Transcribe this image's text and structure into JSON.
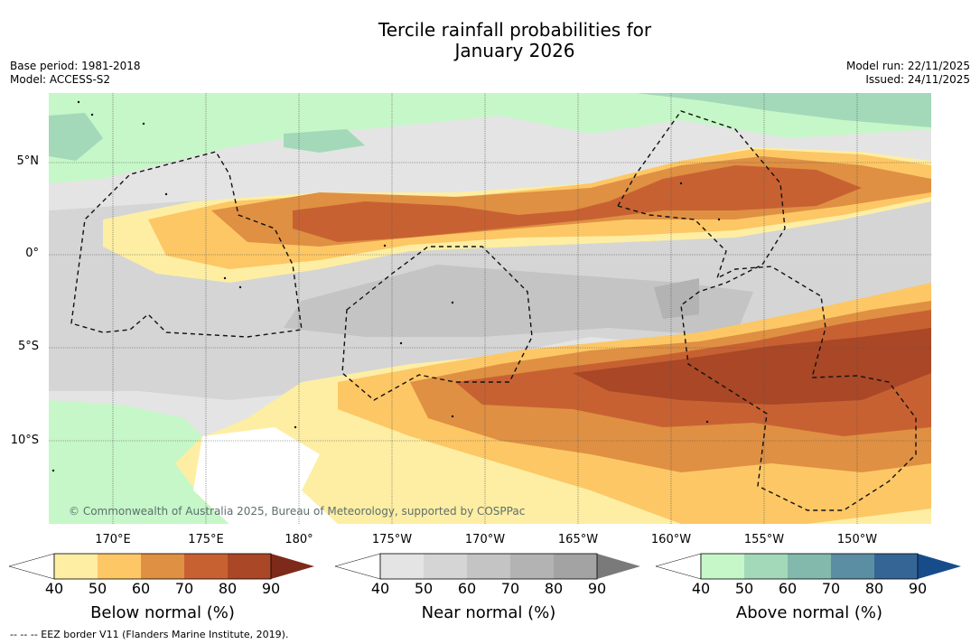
{
  "title_line1": "Tercile rainfall probabilities for",
  "title_line2": "January 2026",
  "base_period": "Base period: 1981-2018",
  "model": "Model: ACCESS-S2",
  "model_run": "Model run: 22/11/2025",
  "issued": "Issued: 24/11/2025",
  "lat_labels": [
    "5°N",
    "0°",
    "5°S",
    "10°S"
  ],
  "lon_labels": [
    "170°E",
    "175°E",
    "180°",
    "175°W",
    "170°W",
    "165°W",
    "160°W",
    "155°W",
    "150°W"
  ],
  "copyright": "© Commonwealth of Australia 2025, Bureau of Meteorology, supported by COSPPac",
  "legend": {
    "below": {
      "title": "Below normal (%)",
      "ticks": [
        "40",
        "50",
        "60",
        "70",
        "80",
        "90"
      ],
      "colors": [
        "#ffffff",
        "#fdeea3",
        "#fdc765",
        "#df9043",
        "#c86132",
        "#a94726",
        "#7e2a1a"
      ]
    },
    "near": {
      "title": "Near normal (%)",
      "ticks": [
        "40",
        "50",
        "60",
        "70",
        "80",
        "90"
      ],
      "colors": [
        "#ffffff",
        "#e4e4e4",
        "#d5d5d5",
        "#c4c4c4",
        "#b3b3b3",
        "#a3a3a3",
        "#7a7a7a"
      ]
    },
    "above": {
      "title": "Above normal (%)",
      "ticks": [
        "40",
        "50",
        "60",
        "70",
        "80",
        "90"
      ],
      "colors": [
        "#ffffff",
        "#c6f7c8",
        "#a3d9b9",
        "#83b9ad",
        "#5b8ea2",
        "#346595",
        "#174c8b"
      ]
    }
  },
  "eez_note": "--  --  -- EEZ border V11 (Flanders Marine Institute, 2019)."
}
